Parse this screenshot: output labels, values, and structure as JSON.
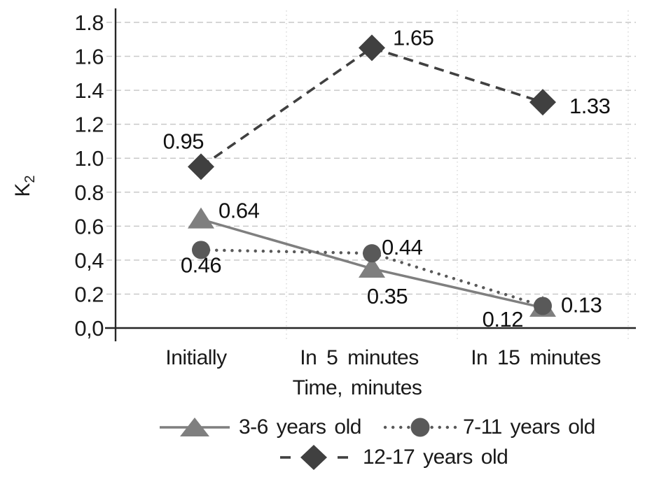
{
  "chart_data": {
    "type": "line",
    "title": "",
    "categories": [
      "Initially",
      "In 5 minutes",
      "In 15 minutes"
    ],
    "x_axis_title": "Time, minutes",
    "y_axis_title": "K",
    "y_axis_title_subscript": "2",
    "ylim": [
      0,
      1.8
    ],
    "y_tick_step": 0.2,
    "y_ticks": [
      "1.8",
      "1.6",
      "1.4",
      "1.2",
      "1.0",
      "0.8",
      "0.6",
      "0,4",
      "0.2",
      "0,0"
    ],
    "grid": {
      "horizontal": "dashed",
      "vertical": "dotted",
      "color": "#c9c9c9",
      "vertical_color": "#cfcfcf"
    },
    "axis_color": "#262626",
    "legend_position": "bottom",
    "series": [
      {
        "name": "3-6 years old",
        "marker": "triangle",
        "line_style": "solid",
        "color": "#7f7f7f",
        "values": [
          0.64,
          0.35,
          0.12
        ],
        "labels": [
          "0.64",
          "0.35",
          "0.12"
        ],
        "label_pos": [
          {
            "a": "start",
            "dx": 25,
            "dy": -2
          },
          {
            "a": "middle",
            "dx": 22,
            "dy": 50
          },
          {
            "a": "end",
            "dx": -28,
            "dy": 27
          }
        ]
      },
      {
        "name": "7-11 years old",
        "marker": "circle",
        "line_style": "dotted",
        "color": "#595959",
        "values": [
          0.46,
          0.44,
          0.13
        ],
        "labels": [
          "0.46",
          "0.44",
          "0.13"
        ],
        "label_pos": [
          {
            "a": "middle",
            "dx": 0,
            "dy": 32
          },
          {
            "a": "start",
            "dx": 14,
            "dy": 2
          },
          {
            "a": "start",
            "dx": 26,
            "dy": 9
          }
        ]
      },
      {
        "name": "12-17 years old",
        "marker": "diamond",
        "line_style": "dashed",
        "color": "#404040",
        "values": [
          0.95,
          1.65,
          1.33
        ],
        "labels": [
          "0.95",
          "1.65",
          "1.33"
        ],
        "label_pos": [
          {
            "a": "end",
            "dx": 4,
            "dy": -26
          },
          {
            "a": "start",
            "dx": 30,
            "dy": -4
          },
          {
            "a": "start",
            "dx": 38,
            "dy": 16
          }
        ]
      }
    ]
  }
}
